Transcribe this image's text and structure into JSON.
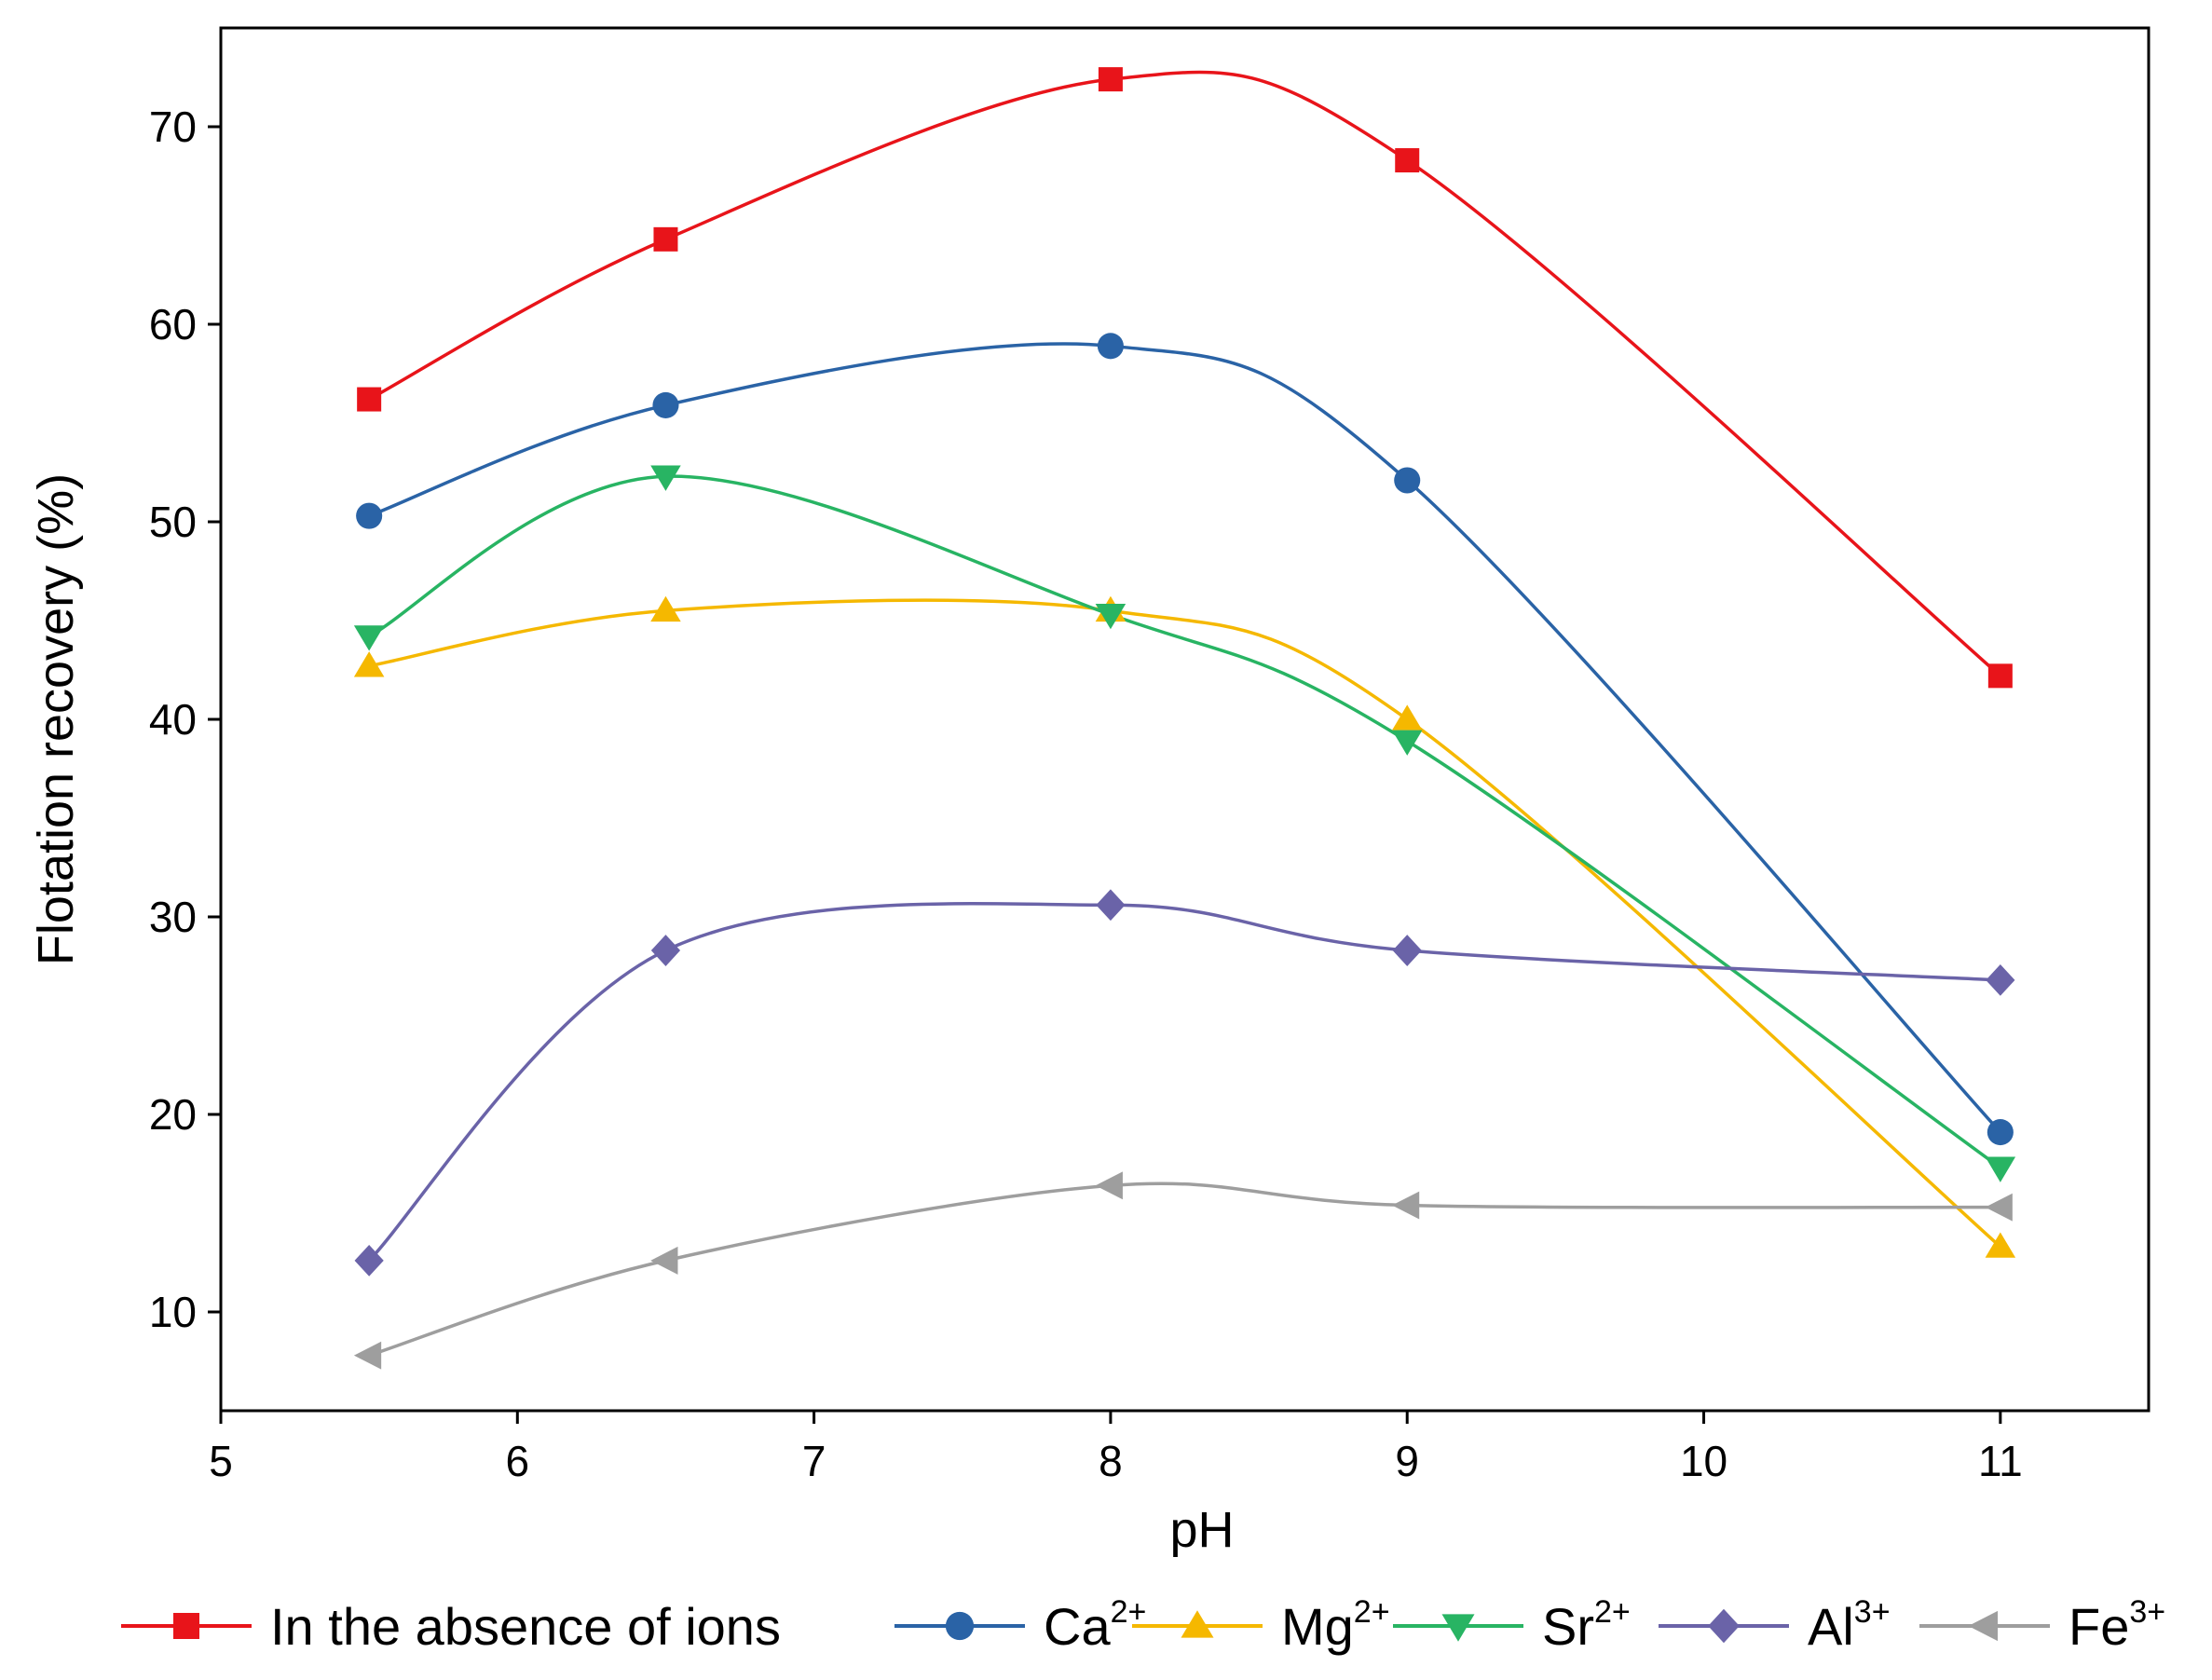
{
  "chart_data": {
    "type": "line",
    "title": "",
    "xlabel": "pH",
    "ylabel": "Flotation recovery (%)",
    "xlim": [
      5,
      11.5
    ],
    "ylim": [
      5,
      75
    ],
    "xticks": [
      5,
      6,
      7,
      8,
      9,
      10,
      11
    ],
    "yticks": [
      10,
      20,
      30,
      40,
      50,
      60,
      70
    ],
    "grid": false,
    "legend_position": "bottom",
    "x": [
      5.5,
      6.5,
      8,
      9,
      11
    ],
    "series": [
      {
        "name": "In the absence of ions",
        "sup": "",
        "color": "#e8141a",
        "marker": "square",
        "values": [
          56.2,
          64.3,
          72.4,
          68.3,
          42.2
        ]
      },
      {
        "name": "Ca",
        "sup": "2+",
        "color": "#2a63a6",
        "marker": "circle",
        "values": [
          50.3,
          55.9,
          58.9,
          52.1,
          19.1
        ]
      },
      {
        "name": "Mg",
        "sup": "2+",
        "color": "#f5b800",
        "marker": "triangle-up",
        "values": [
          42.7,
          45.5,
          45.5,
          40.0,
          13.3
        ]
      },
      {
        "name": "Sr",
        "sup": "2+",
        "color": "#28b463",
        "marker": "triangle-down",
        "values": [
          44.2,
          52.3,
          45.3,
          38.9,
          17.3
        ]
      },
      {
        "name": "Al",
        "sup": "3+",
        "color": "#6a63a8",
        "marker": "diamond",
        "values": [
          12.6,
          28.3,
          30.6,
          28.3,
          26.8
        ]
      },
      {
        "name": "Fe",
        "sup": "3+",
        "color": "#9e9e9e",
        "marker": "triangle-left",
        "values": [
          7.8,
          12.6,
          16.4,
          15.4,
          15.3
        ]
      }
    ]
  }
}
